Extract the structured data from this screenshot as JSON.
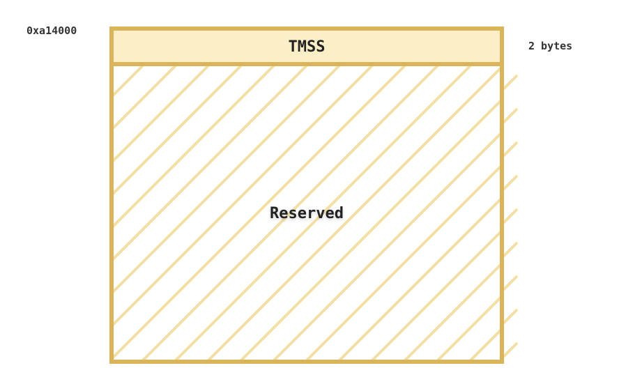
{
  "memory_map": {
    "base_address": "0xa14000",
    "colors": {
      "border": "#d9b45a",
      "header_fill": "#fcefc7",
      "hatch": "#f3dfa6",
      "text": "#222222",
      "side_text": "#333333"
    },
    "regions": [
      {
        "name": "TMSS",
        "size_label": "2 bytes",
        "style": "solid"
      },
      {
        "name": "Reserved",
        "size_label": "",
        "style": "hatched"
      }
    ]
  }
}
